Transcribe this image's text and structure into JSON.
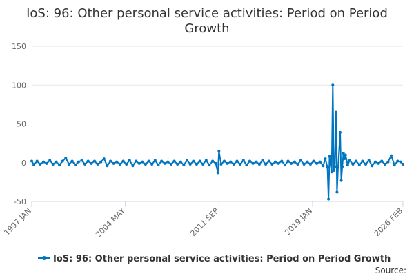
{
  "chart_data": {
    "type": "line",
    "title_lines": [
      "IoS: 96: Other personal service activities: Period on Period",
      "Growth"
    ],
    "xlabel": "",
    "ylabel": "",
    "ylim": [
      -50,
      150
    ],
    "yticks": [
      150,
      100,
      50,
      0,
      -50
    ],
    "xlim": [
      "1997-01",
      "2026-02"
    ],
    "xticks": [
      {
        "label": "1997 JAN",
        "date": "1997-01"
      },
      {
        "label": "2004 MAY",
        "date": "2004-05"
      },
      {
        "label": "2011 SEP",
        "date": "2011-09"
      },
      {
        "label": "2019 JAN",
        "date": "2019-01"
      },
      {
        "label": "2026 FEB",
        "date": "2026-02"
      }
    ],
    "grid": true,
    "legend_position": "bottom",
    "series": [
      {
        "name": "IoS: 96: Other personal service activities: Period on Period Growth",
        "color": "#0075bf",
        "points": [
          [
            "1997-01",
            2
          ],
          [
            "1997-03",
            -3
          ],
          [
            "1997-06",
            2
          ],
          [
            "1997-09",
            -2
          ],
          [
            "1997-12",
            1
          ],
          [
            "1998-03",
            -1
          ],
          [
            "1998-06",
            3
          ],
          [
            "1998-09",
            -2
          ],
          [
            "1998-12",
            1
          ],
          [
            "1999-03",
            -3
          ],
          [
            "1999-06",
            2
          ],
          [
            "1999-09",
            6
          ],
          [
            "1999-12",
            -2
          ],
          [
            "2000-03",
            2
          ],
          [
            "2000-06",
            -3
          ],
          [
            "2000-09",
            1
          ],
          [
            "2000-12",
            3
          ],
          [
            "2001-03",
            -2
          ],
          [
            "2001-06",
            2
          ],
          [
            "2001-09",
            -1
          ],
          [
            "2001-12",
            2
          ],
          [
            "2002-03",
            -2
          ],
          [
            "2002-06",
            1
          ],
          [
            "2002-09",
            5
          ],
          [
            "2002-12",
            -4
          ],
          [
            "2003-03",
            2
          ],
          [
            "2003-06",
            -1
          ],
          [
            "2003-09",
            1
          ],
          [
            "2003-12",
            -2
          ],
          [
            "2004-03",
            2
          ],
          [
            "2004-06",
            -2
          ],
          [
            "2004-09",
            3
          ],
          [
            "2004-12",
            -4
          ],
          [
            "2005-03",
            2
          ],
          [
            "2005-06",
            -1
          ],
          [
            "2005-09",
            1
          ],
          [
            "2005-12",
            -2
          ],
          [
            "2006-03",
            2
          ],
          [
            "2006-06",
            -2
          ],
          [
            "2006-09",
            3
          ],
          [
            "2006-12",
            -3
          ],
          [
            "2007-03",
            2
          ],
          [
            "2007-06",
            -1
          ],
          [
            "2007-09",
            1
          ],
          [
            "2007-12",
            -2
          ],
          [
            "2008-03",
            2
          ],
          [
            "2008-06",
            -2
          ],
          [
            "2008-09",
            1
          ],
          [
            "2008-12",
            -3
          ],
          [
            "2009-03",
            3
          ],
          [
            "2009-06",
            -2
          ],
          [
            "2009-09",
            2
          ],
          [
            "2009-12",
            -2
          ],
          [
            "2010-03",
            2
          ],
          [
            "2010-06",
            -2
          ],
          [
            "2010-09",
            3
          ],
          [
            "2010-12",
            -3
          ],
          [
            "2011-03",
            2
          ],
          [
            "2011-06",
            -1
          ],
          [
            "2011-08",
            -13
          ],
          [
            "2011-09",
            15
          ],
          [
            "2011-11",
            -2
          ],
          [
            "2012-02",
            2
          ],
          [
            "2012-05",
            -1
          ],
          [
            "2012-08",
            1
          ],
          [
            "2012-11",
            -2
          ],
          [
            "2013-02",
            2
          ],
          [
            "2013-05",
            -2
          ],
          [
            "2013-08",
            3
          ],
          [
            "2013-11",
            -3
          ],
          [
            "2014-02",
            2
          ],
          [
            "2014-05",
            -1
          ],
          [
            "2014-08",
            1
          ],
          [
            "2014-11",
            -2
          ],
          [
            "2015-02",
            3
          ],
          [
            "2015-05",
            -2
          ],
          [
            "2015-08",
            2
          ],
          [
            "2015-11",
            -2
          ],
          [
            "2016-02",
            1
          ],
          [
            "2016-05",
            -1
          ],
          [
            "2016-08",
            2
          ],
          [
            "2016-11",
            -3
          ],
          [
            "2017-02",
            2
          ],
          [
            "2017-05",
            -1
          ],
          [
            "2017-08",
            1
          ],
          [
            "2017-11",
            -2
          ],
          [
            "2018-02",
            3
          ],
          [
            "2018-05",
            -2
          ],
          [
            "2018-08",
            1
          ],
          [
            "2018-11",
            -2
          ],
          [
            "2019-02",
            2
          ],
          [
            "2019-05",
            -1
          ],
          [
            "2019-08",
            1
          ],
          [
            "2019-11",
            -4
          ],
          [
            "2020-01",
            5
          ],
          [
            "2020-03",
            -6
          ],
          [
            "2020-04",
            -47
          ],
          [
            "2020-05",
            8
          ],
          [
            "2020-07",
            -12
          ],
          [
            "2020-08",
            100
          ],
          [
            "2020-09",
            -10
          ],
          [
            "2020-10",
            -5
          ],
          [
            "2020-11",
            65
          ],
          [
            "2020-12",
            -38
          ],
          [
            "2021-01",
            -5
          ],
          [
            "2021-03",
            39
          ],
          [
            "2021-04",
            -23
          ],
          [
            "2021-05",
            -5
          ],
          [
            "2021-06",
            12
          ],
          [
            "2021-07",
            5
          ],
          [
            "2021-08",
            10
          ],
          [
            "2021-10",
            -3
          ],
          [
            "2021-12",
            3
          ],
          [
            "2022-03",
            -2
          ],
          [
            "2022-06",
            2
          ],
          [
            "2022-09",
            -3
          ],
          [
            "2022-12",
            2
          ],
          [
            "2023-03",
            -2
          ],
          [
            "2023-06",
            3
          ],
          [
            "2023-09",
            -4
          ],
          [
            "2023-12",
            1
          ],
          [
            "2024-03",
            -1
          ],
          [
            "2024-06",
            2
          ],
          [
            "2024-09",
            -2
          ],
          [
            "2024-12",
            1
          ],
          [
            "2025-03",
            9
          ],
          [
            "2025-06",
            -3
          ],
          [
            "2025-09",
            2
          ],
          [
            "2025-12",
            1
          ],
          [
            "2026-02",
            -2
          ]
        ]
      }
    ]
  },
  "footer": {
    "source_label": "Source:"
  }
}
